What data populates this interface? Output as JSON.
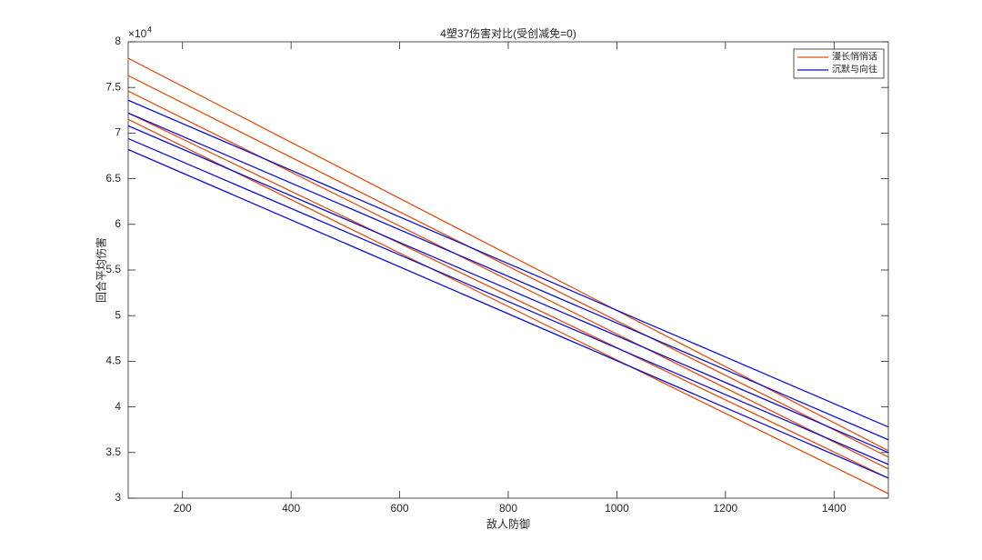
{
  "chart_data": {
    "type": "line",
    "title": "4塑37伤害对比(受创减免=0)",
    "x_label": "敌人防御",
    "y_label": "回合平均伤害",
    "y_multiplier": {
      "base": "×10",
      "exponent": "4"
    },
    "x": [
      100,
      1500
    ],
    "xlim": [
      100,
      1500
    ],
    "xticks": [
      200,
      400,
      600,
      800,
      1000,
      1200,
      1400
    ],
    "ylim": [
      30000,
      80000
    ],
    "yticks": [
      {
        "value": 30000,
        "label": "3"
      },
      {
        "value": 35000,
        "label": "3.5"
      },
      {
        "value": 40000,
        "label": "4"
      },
      {
        "value": 45000,
        "label": "4.5"
      },
      {
        "value": 50000,
        "label": "5"
      },
      {
        "value": 55000,
        "label": "5.5"
      },
      {
        "value": 60000,
        "label": "6"
      },
      {
        "value": 65000,
        "label": "6.5"
      },
      {
        "value": 70000,
        "label": "7"
      },
      {
        "value": 75000,
        "label": "7.5"
      },
      {
        "value": 80000,
        "label": "8"
      }
    ],
    "legend_position": "upper-right",
    "series": [
      {
        "name": "漫长悄悄话",
        "color": "#d95319",
        "lines": [
          [
            78200,
            35200
          ],
          [
            76300,
            34500
          ],
          [
            74600,
            33200
          ],
          [
            72200,
            32200
          ],
          [
            71500,
            30500
          ]
        ]
      },
      {
        "name": "沉默与向往",
        "color": "#1010c8",
        "lines": [
          [
            73600,
            37800
          ],
          [
            72200,
            36400
          ],
          [
            70800,
            35000
          ],
          [
            69400,
            33700
          ],
          [
            68200,
            32200
          ]
        ]
      }
    ]
  }
}
